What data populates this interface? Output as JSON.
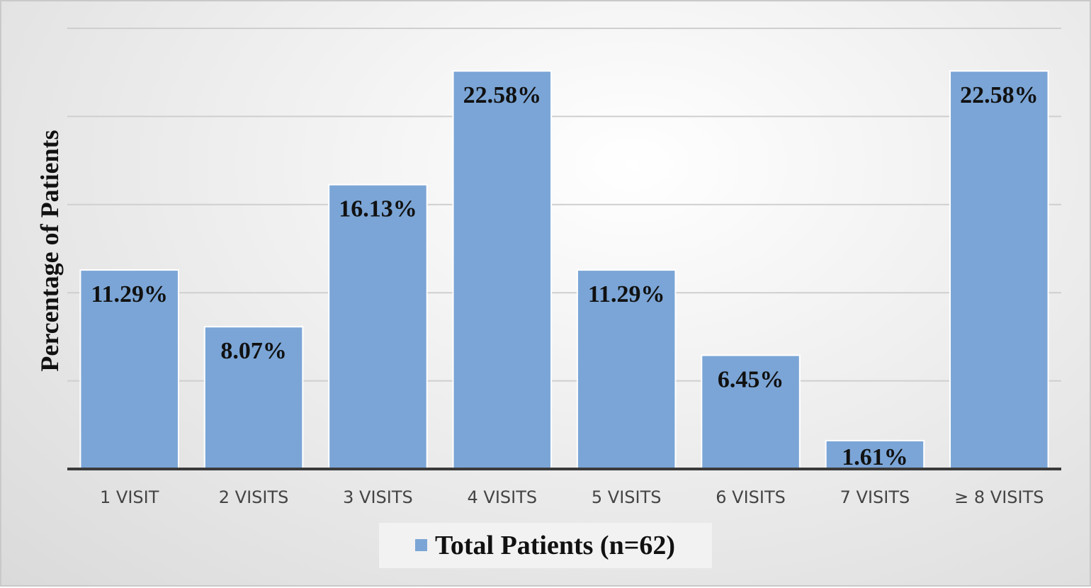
{
  "chart_data": {
    "type": "bar",
    "title": "",
    "xlabel": "",
    "ylabel": "Percentage of Patients",
    "ylim": [
      0,
      25
    ],
    "grid": true,
    "legend_position": "bottom",
    "categories": [
      "1 VISIT",
      "2 VISITS",
      "3 VISITS",
      "4 VISITS",
      "5 VISITS",
      "6 VISITS",
      "7 VISITS",
      "≥ 8 VISITS"
    ],
    "series": [
      {
        "name": "Total Patients (n=62)",
        "values": [
          11.29,
          8.07,
          16.13,
          22.58,
          11.29,
          6.45,
          1.61,
          22.58
        ],
        "labels": [
          "11.29%",
          "8.07%",
          "16.13%",
          "22.58%",
          "11.29%",
          "6.45%",
          "1.61%",
          "22.58%"
        ]
      }
    ],
    "colors": {
      "bar": "#7ba5d6"
    }
  }
}
